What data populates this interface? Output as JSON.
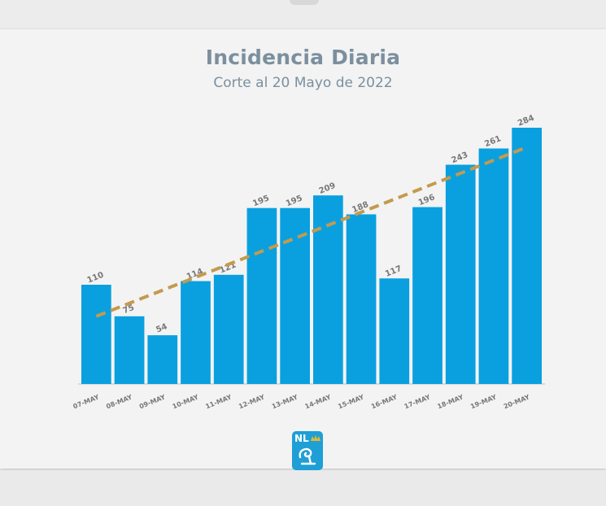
{
  "title": "Incidencia Diaria",
  "subtitle": "Corte al 20 Mayo de 2022",
  "logo": {
    "text": "NL",
    "icon": "nuevo-leon-shield-icon"
  },
  "colors": {
    "bar": "#0aa0df",
    "trend": "#c49a4e",
    "text": "#7b8f9e",
    "label": "#777777"
  },
  "chart_data": {
    "type": "bar",
    "title": "Incidencia Diaria",
    "subtitle": "Corte al 20 Mayo de 2022",
    "categories": [
      "07-MAY",
      "08-MAY",
      "09-MAY",
      "10-MAY",
      "11-MAY",
      "12-MAY",
      "13-MAY",
      "14-MAY",
      "15-MAY",
      "16-MAY",
      "17-MAY",
      "18-MAY",
      "19-MAY",
      "20-MAY"
    ],
    "values": [
      110,
      75,
      54,
      114,
      121,
      195,
      195,
      209,
      188,
      117,
      196,
      243,
      261,
      284
    ],
    "value_labels": [
      "110",
      "75",
      "54",
      "114",
      "121",
      "195",
      "195",
      "209",
      "188",
      "117",
      "196",
      "243",
      "261",
      "284"
    ],
    "trendline": {
      "type": "linear",
      "style": "dashed"
    },
    "ylim": [
      0,
      284
    ],
    "grid": false,
    "legend": "none",
    "xlabel": "",
    "ylabel": ""
  }
}
